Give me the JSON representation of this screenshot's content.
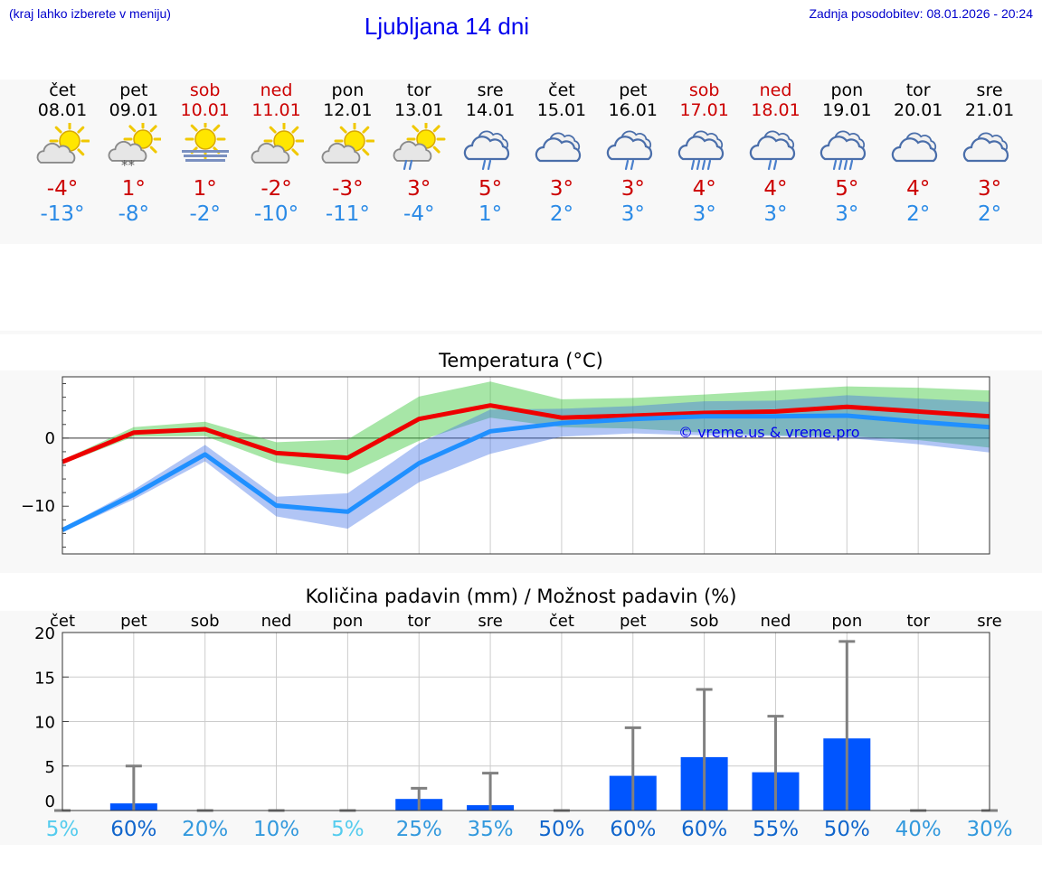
{
  "header": {
    "hint": "(kraj lahko izberete v meniju)",
    "title": "Ljubljana 14 dni",
    "updated": "Zadnja posodobitev: 08.01.2026 - 20:24"
  },
  "colors": {
    "weekend": "#cc0000",
    "max": "#cc0000",
    "min": "#2a8ae6",
    "bar": "#0055ff"
  },
  "days": [
    {
      "name": "čet",
      "date": "08.01",
      "weekend": false,
      "icon": "sun-cloud-icon",
      "max": "-4°",
      "min": "-13°"
    },
    {
      "name": "pet",
      "date": "09.01",
      "weekend": false,
      "icon": "sun-cloud-snow-icon",
      "max": "1°",
      "min": "-8°"
    },
    {
      "name": "sob",
      "date": "10.01",
      "weekend": true,
      "icon": "sun-fog-icon",
      "max": "1°",
      "min": "-2°"
    },
    {
      "name": "ned",
      "date": "11.01",
      "weekend": true,
      "icon": "sun-cloud-icon",
      "max": "-2°",
      "min": "-10°"
    },
    {
      "name": "pon",
      "date": "12.01",
      "weekend": false,
      "icon": "sun-cloud-icon",
      "max": "-3°",
      "min": "-11°"
    },
    {
      "name": "tor",
      "date": "13.01",
      "weekend": false,
      "icon": "sun-cloud-rain-icon",
      "max": "3°",
      "min": "-4°"
    },
    {
      "name": "sre",
      "date": "14.01",
      "weekend": false,
      "icon": "cloud-rain-icon",
      "max": "5°",
      "min": "1°"
    },
    {
      "name": "čet",
      "date": "15.01",
      "weekend": false,
      "icon": "cloud-icon",
      "max": "3°",
      "min": "2°"
    },
    {
      "name": "pet",
      "date": "16.01",
      "weekend": false,
      "icon": "cloud-rain-icon",
      "max": "3°",
      "min": "3°"
    },
    {
      "name": "sob",
      "date": "17.01",
      "weekend": true,
      "icon": "cloud-heavy-rain-icon",
      "max": "4°",
      "min": "3°"
    },
    {
      "name": "ned",
      "date": "18.01",
      "weekend": true,
      "icon": "cloud-rain-icon",
      "max": "4°",
      "min": "3°"
    },
    {
      "name": "pon",
      "date": "19.01",
      "weekend": false,
      "icon": "cloud-heavy-rain-icon",
      "max": "5°",
      "min": "3°"
    },
    {
      "name": "tor",
      "date": "20.01",
      "weekend": false,
      "icon": "cloud-icon",
      "max": "4°",
      "min": "2°"
    },
    {
      "name": "sre",
      "date": "21.01",
      "weekend": false,
      "icon": "cloud-icon",
      "max": "3°",
      "min": "2°"
    }
  ],
  "chart_data": [
    {
      "type": "line",
      "title": "Temperatura (°C)",
      "watermark": "© vreme.us & vreme.pro",
      "ylim": [
        -17,
        9
      ],
      "yticks": [
        0,
        -10
      ],
      "ytick_labels": [
        "0",
        "−10"
      ],
      "x": [
        0,
        1,
        2,
        3,
        4,
        5,
        6,
        7,
        8,
        9,
        10,
        11,
        12,
        13
      ],
      "series": [
        {
          "name": "max",
          "color": "#ee0000",
          "values": [
            -3.5,
            0.8,
            1.3,
            -2.2,
            -2.9,
            2.8,
            4.8,
            3.0,
            3.3,
            3.7,
            3.9,
            4.6,
            3.9,
            3.2
          ],
          "band_low": [
            -3.8,
            0.2,
            0.3,
            -3.6,
            -5.3,
            -0.4,
            3.0,
            1.6,
            1.4,
            0.8,
            0.4,
            0.3,
            -0.3,
            -1.4
          ],
          "band_high": [
            -3.2,
            1.6,
            2.4,
            -0.6,
            -0.2,
            6.1,
            8.3,
            5.7,
            5.9,
            6.4,
            7.0,
            7.6,
            7.4,
            7.0
          ]
        },
        {
          "name": "min",
          "color": "#2090ff",
          "values": [
            -13.5,
            -8.3,
            -2.4,
            -9.9,
            -10.8,
            -3.7,
            1.0,
            2.2,
            2.8,
            3.2,
            3.2,
            3.3,
            2.4,
            1.6
          ],
          "band_low": [
            -13.8,
            -9.0,
            -3.4,
            -11.5,
            -13.3,
            -6.5,
            -2.3,
            0.2,
            0.7,
            0.4,
            0.3,
            0.0,
            -0.9,
            -2.1
          ],
          "band_high": [
            -13.2,
            -7.6,
            -1.0,
            -8.6,
            -8.1,
            -0.8,
            4.2,
            4.3,
            4.7,
            5.4,
            5.5,
            6.3,
            5.8,
            5.3
          ]
        }
      ]
    },
    {
      "type": "bar",
      "title": "Količina padavin (mm) / Možnost padavin (%)",
      "ylim": [
        0,
        20
      ],
      "yticks": [
        0,
        5,
        10,
        15,
        20
      ],
      "ytick_labels": [
        "0",
        "5",
        "10",
        "15",
        "20"
      ],
      "categories": [
        "čet",
        "pet",
        "sob",
        "ned",
        "pon",
        "tor",
        "sre",
        "čet",
        "pet",
        "sob",
        "ned",
        "pon",
        "tor",
        "sre"
      ],
      "values": [
        0,
        0.8,
        0,
        0,
        0,
        1.3,
        0.6,
        0,
        3.9,
        6.0,
        4.3,
        8.1,
        0,
        0
      ],
      "error_high": [
        0,
        5.0,
        0,
        0,
        0,
        2.5,
        4.2,
        0,
        9.3,
        13.6,
        10.6,
        19.0,
        0,
        0
      ],
      "probability": [
        "5%",
        "60%",
        "20%",
        "10%",
        "5%",
        "25%",
        "35%",
        "50%",
        "60%",
        "60%",
        "55%",
        "50%",
        "40%",
        "30%"
      ],
      "probability_colors": [
        "#55ccee",
        "#1166cc",
        "#3399dd",
        "#3399dd",
        "#55ccee",
        "#3399dd",
        "#3399dd",
        "#1166cc",
        "#1166cc",
        "#1166cc",
        "#1166cc",
        "#1166cc",
        "#3399dd",
        "#3399dd"
      ]
    }
  ]
}
